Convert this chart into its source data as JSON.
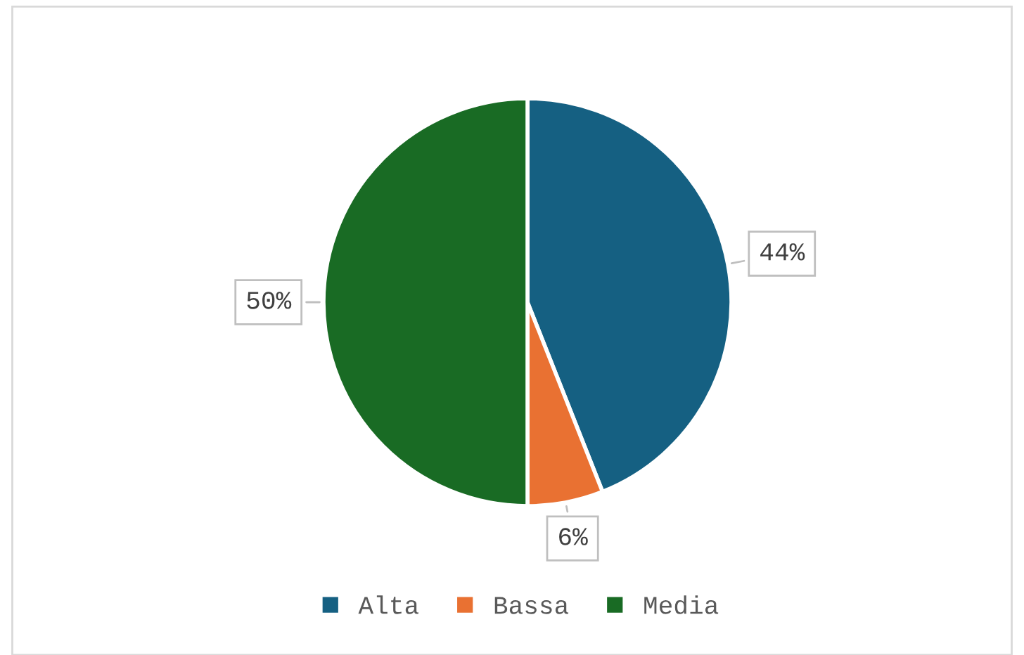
{
  "chart_data": {
    "type": "pie",
    "categories": [
      "Alta",
      "Bassa",
      "Media"
    ],
    "values": [
      44,
      6,
      50
    ],
    "colors": [
      "#156082",
      "#e97132",
      "#196b24"
    ],
    "value_labels": [
      "44%",
      "6%",
      "50%"
    ],
    "legend": "bottom"
  }
}
